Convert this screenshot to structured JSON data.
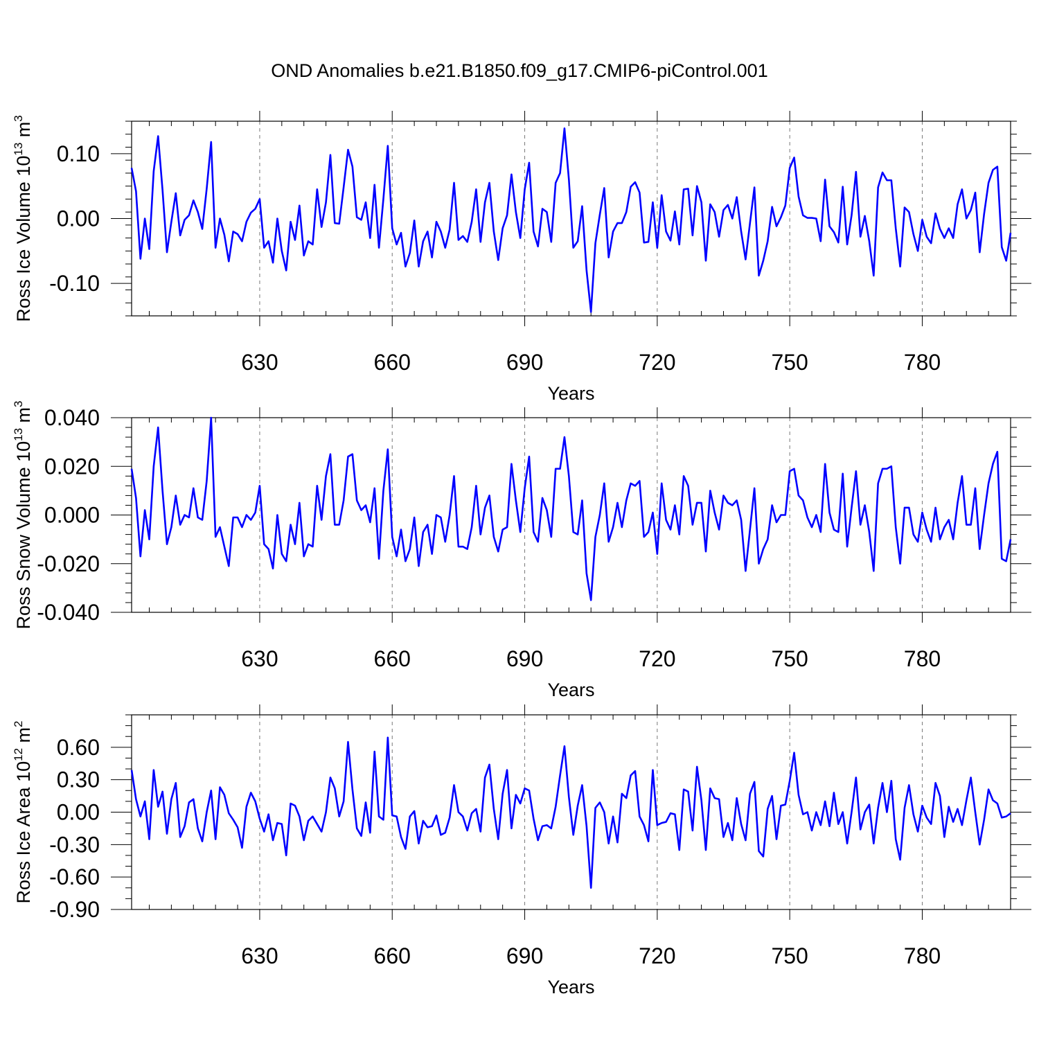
{
  "title": "OND Anomalies b.e21.B1850.f09_g17.CMIP6-piControl.001",
  "x_tick_labels": [
    "630",
    "660",
    "690",
    "720",
    "750",
    "780"
  ],
  "line_color": "#0000ff",
  "chart_data": [
    {
      "type": "line",
      "ylabel": {
        "main": "Ross Ice Volume 10",
        "sup": "13",
        "tail": " m",
        "sup2": "3"
      },
      "xlabel": "Years",
      "xlim": [
        601,
        800
      ],
      "ylim": [
        -0.15,
        0.15
      ],
      "x_ticks": [
        630,
        660,
        690,
        720,
        750,
        780
      ],
      "y_ticks": [
        -0.1,
        0.0,
        0.1
      ],
      "y_tick_labels": [
        "-0.10",
        "0.00",
        "0.10"
      ],
      "y_minor_step": 0.02,
      "grid": "dashed vertical lines at major x ticks",
      "series": [
        {
          "color": "#0000ff",
          "x_start": 601,
          "x_step": 1,
          "values": [
            0.078,
            0.042,
            -0.062,
            0.0,
            -0.047,
            0.073,
            0.127,
            0.044,
            -0.052,
            -0.005,
            0.039,
            -0.026,
            -0.002,
            0.005,
            0.028,
            0.01,
            -0.016,
            0.046,
            0.118,
            -0.045,
            0.0,
            -0.025,
            -0.066,
            -0.02,
            -0.024,
            -0.035,
            -0.005,
            0.009,
            0.015,
            0.03,
            -0.045,
            -0.035,
            -0.068,
            0.0,
            -0.05,
            -0.08,
            -0.005,
            -0.033,
            0.02,
            -0.057,
            -0.035,
            -0.04,
            0.045,
            -0.013,
            0.025,
            0.098,
            -0.007,
            -0.008,
            0.048,
            0.106,
            0.08,
            0.002,
            -0.002,
            0.025,
            -0.03,
            0.052,
            -0.045,
            0.03,
            0.112,
            -0.015,
            -0.04,
            -0.022,
            -0.074,
            -0.053,
            -0.003,
            -0.074,
            -0.035,
            -0.02,
            -0.06,
            -0.005,
            -0.02,
            -0.045,
            -0.017,
            0.055,
            -0.033,
            -0.027,
            -0.036,
            -0.005,
            0.045,
            -0.036,
            0.025,
            0.055,
            -0.02,
            -0.064,
            -0.015,
            0.005,
            0.068,
            0.01,
            -0.03,
            0.045,
            0.086,
            -0.02,
            -0.043,
            0.015,
            0.01,
            -0.036,
            0.055,
            0.07,
            0.139,
            0.06,
            -0.045,
            -0.035,
            0.019,
            -0.08,
            -0.144,
            -0.038,
            0.006,
            0.047,
            -0.06,
            -0.02,
            -0.007,
            -0.007,
            0.01,
            0.049,
            0.056,
            0.04,
            -0.037,
            -0.036,
            0.025,
            -0.045,
            0.036,
            -0.02,
            -0.034,
            0.011,
            -0.04,
            0.045,
            0.046,
            -0.026,
            0.05,
            0.025,
            -0.065,
            0.022,
            0.01,
            -0.028,
            0.013,
            0.021,
            0.0,
            0.033,
            -0.02,
            -0.063,
            -0.007,
            0.048,
            -0.088,
            -0.065,
            -0.035,
            0.018,
            -0.012,
            0.002,
            0.02,
            0.078,
            0.094,
            0.034,
            0.005,
            0.001,
            0.001,
            0.0,
            -0.035,
            0.06,
            -0.012,
            -0.021,
            -0.037,
            0.049,
            -0.04,
            0.005,
            0.072,
            -0.028,
            0.004,
            -0.035,
            -0.088,
            0.048,
            0.071,
            0.059,
            0.059,
            -0.015,
            -0.074,
            0.017,
            0.01,
            -0.024,
            -0.05,
            -0.002,
            -0.028,
            -0.038,
            0.008,
            -0.016,
            -0.03,
            -0.015,
            -0.03,
            0.022,
            0.045,
            0.0,
            0.013,
            0.04,
            -0.052,
            0.007,
            0.055,
            0.075,
            0.08,
            -0.044,
            -0.065,
            -0.022
          ]
        }
      ]
    },
    {
      "type": "line",
      "ylabel": {
        "main": "Ross Snow Volume 10",
        "sup": "13",
        "tail": " m",
        "sup2": "3"
      },
      "xlabel": "Years",
      "xlim": [
        601,
        800
      ],
      "ylim": [
        -0.04,
        0.04
      ],
      "x_ticks": [
        630,
        660,
        690,
        720,
        750,
        780
      ],
      "y_ticks": [
        -0.04,
        -0.02,
        0.0,
        0.02,
        0.04
      ],
      "y_tick_labels": [
        "-0.040",
        "-0.020",
        "0.000",
        "0.020",
        "0.040"
      ],
      "y_minor_step": 0.004,
      "grid": "dashed vertical lines at major x ticks",
      "series": [
        {
          "color": "#0000ff",
          "x_start": 601,
          "x_step": 1,
          "values": [
            0.019,
            0.007,
            -0.017,
            0.002,
            -0.01,
            0.02,
            0.036,
            0.01,
            -0.012,
            -0.005,
            0.008,
            -0.004,
            0.0,
            -0.001,
            0.011,
            -0.001,
            -0.002,
            0.014,
            0.04,
            -0.009,
            -0.005,
            -0.013,
            -0.021,
            -0.001,
            -0.001,
            -0.005,
            0.0,
            -0.002,
            0.001,
            0.012,
            -0.012,
            -0.014,
            -0.022,
            0.0,
            -0.016,
            -0.019,
            -0.004,
            -0.012,
            0.005,
            -0.017,
            -0.012,
            -0.013,
            0.012,
            -0.002,
            0.016,
            0.025,
            -0.004,
            -0.004,
            0.006,
            0.024,
            0.025,
            0.006,
            0.002,
            0.004,
            -0.003,
            0.011,
            -0.018,
            0.01,
            0.027,
            -0.009,
            -0.017,
            -0.006,
            -0.019,
            -0.014,
            -0.001,
            -0.021,
            -0.007,
            -0.004,
            -0.016,
            0.0,
            -0.001,
            -0.011,
            0.0,
            0.016,
            -0.013,
            -0.013,
            -0.014,
            -0.005,
            0.012,
            -0.008,
            0.003,
            0.008,
            -0.009,
            -0.015,
            -0.006,
            -0.005,
            0.021,
            0.006,
            -0.007,
            0.011,
            0.024,
            -0.007,
            -0.011,
            0.007,
            0.002,
            -0.009,
            0.019,
            0.019,
            0.032,
            0.016,
            -0.007,
            -0.008,
            0.006,
            -0.024,
            -0.035,
            -0.009,
            0.0,
            0.013,
            -0.011,
            -0.005,
            0.005,
            -0.005,
            0.006,
            0.013,
            0.012,
            0.014,
            -0.009,
            -0.007,
            0.001,
            -0.016,
            0.013,
            -0.002,
            -0.006,
            0.004,
            -0.008,
            0.016,
            0.012,
            -0.004,
            0.005,
            0.005,
            -0.015,
            0.01,
            0.001,
            -0.006,
            0.008,
            0.005,
            0.004,
            0.006,
            -0.002,
            -0.023,
            -0.006,
            0.011,
            -0.02,
            -0.014,
            -0.01,
            0.004,
            -0.003,
            0.0,
            0.0,
            0.018,
            0.019,
            0.008,
            0.006,
            -0.001,
            -0.005,
            0.0,
            -0.007,
            0.021,
            0.001,
            -0.006,
            -0.007,
            0.017,
            -0.013,
            0.003,
            0.018,
            -0.004,
            0.004,
            -0.007,
            -0.023,
            0.013,
            0.019,
            0.019,
            0.02,
            -0.005,
            -0.02,
            0.003,
            0.003,
            -0.008,
            -0.011,
            0.001,
            -0.006,
            -0.011,
            0.003,
            -0.01,
            -0.005,
            -0.002,
            -0.01,
            0.005,
            0.016,
            -0.004,
            -0.004,
            0.011,
            -0.014,
            0.0,
            0.013,
            0.021,
            0.026,
            -0.018,
            -0.019,
            -0.01
          ]
        }
      ]
    },
    {
      "type": "line",
      "ylabel": {
        "main": "Ross Ice Area 10",
        "sup": "12",
        "tail": " m",
        "sup2": "2"
      },
      "xlabel": "Years",
      "xlim": [
        601,
        800
      ],
      "ylim": [
        -0.9,
        0.9
      ],
      "x_ticks": [
        630,
        660,
        690,
        720,
        750,
        780
      ],
      "y_ticks": [
        -0.9,
        -0.6,
        -0.3,
        0.0,
        0.3,
        0.6
      ],
      "y_tick_labels": [
        "-0.90",
        "-0.60",
        "-0.30",
        "0.00",
        "0.30",
        "0.60"
      ],
      "y_minor_step": 0.1,
      "grid": "dashed vertical lines at major x ticks",
      "series": [
        {
          "color": "#0000ff",
          "x_start": 601,
          "x_step": 1,
          "values": [
            0.39,
            0.12,
            -0.04,
            0.1,
            -0.25,
            0.39,
            0.05,
            0.19,
            -0.2,
            0.12,
            0.27,
            -0.23,
            -0.13,
            0.09,
            0.12,
            -0.15,
            -0.27,
            0.0,
            0.2,
            -0.25,
            0.23,
            0.16,
            -0.01,
            -0.07,
            -0.14,
            -0.33,
            0.05,
            0.18,
            0.1,
            -0.06,
            -0.18,
            -0.02,
            -0.26,
            -0.1,
            -0.11,
            -0.4,
            0.08,
            0.06,
            -0.04,
            -0.26,
            -0.08,
            -0.04,
            -0.11,
            -0.18,
            0.0,
            0.32,
            0.22,
            -0.04,
            0.1,
            0.65,
            0.21,
            -0.15,
            -0.22,
            0.09,
            -0.19,
            0.56,
            -0.04,
            -0.07,
            0.69,
            -0.03,
            -0.04,
            -0.23,
            -0.34,
            -0.04,
            0.01,
            -0.29,
            -0.08,
            -0.14,
            -0.13,
            -0.03,
            -0.21,
            -0.19,
            -0.05,
            0.25,
            0.0,
            -0.04,
            -0.17,
            -0.01,
            0.03,
            -0.18,
            0.32,
            0.44,
            0.03,
            -0.25,
            0.17,
            0.39,
            -0.15,
            0.16,
            0.08,
            0.22,
            0.2,
            -0.06,
            -0.26,
            -0.13,
            -0.12,
            -0.15,
            0.05,
            0.34,
            0.61,
            0.14,
            -0.21,
            0.06,
            0.25,
            -0.13,
            -0.7,
            0.04,
            0.09,
            0.0,
            -0.29,
            -0.04,
            -0.28,
            0.17,
            0.13,
            0.34,
            0.38,
            -0.04,
            -0.12,
            -0.27,
            0.39,
            -0.12,
            -0.1,
            -0.09,
            -0.01,
            -0.02,
            -0.35,
            0.21,
            0.19,
            -0.17,
            0.42,
            0.11,
            -0.35,
            0.22,
            0.13,
            0.12,
            -0.23,
            -0.1,
            -0.26,
            0.13,
            -0.11,
            -0.26,
            0.17,
            0.28,
            -0.36,
            -0.41,
            0.03,
            0.15,
            -0.25,
            0.06,
            0.07,
            0.29,
            0.55,
            0.16,
            -0.02,
            0.0,
            -0.17,
            0.0,
            -0.12,
            0.1,
            -0.13,
            0.18,
            -0.11,
            0.0,
            -0.29,
            0.0,
            0.32,
            -0.16,
            0.0,
            0.07,
            -0.29,
            0.04,
            0.27,
            0.0,
            0.29,
            -0.25,
            -0.44,
            0.04,
            0.25,
            -0.02,
            -0.18,
            0.06,
            -0.05,
            -0.11,
            0.27,
            0.15,
            -0.23,
            0.05,
            -0.09,
            0.03,
            -0.12,
            0.11,
            0.32,
            0.0,
            -0.3,
            -0.07,
            0.21,
            0.11,
            0.08,
            -0.05,
            -0.04,
            -0.01
          ]
        }
      ]
    }
  ]
}
